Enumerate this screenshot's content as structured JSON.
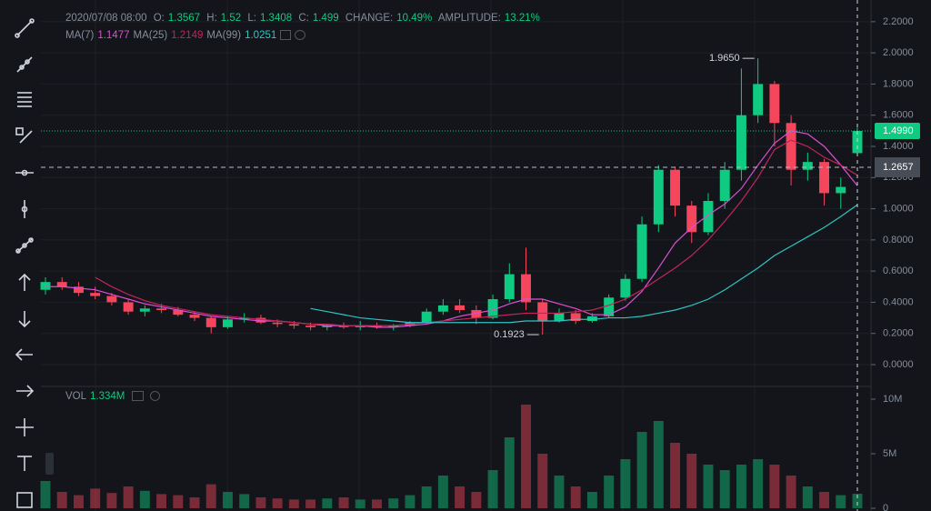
{
  "header": {
    "datetime": "2020/07/08 08:00",
    "o_label": "O:",
    "h_label": "H:",
    "l_label": "L:",
    "c_label": "C:",
    "change_label": "CHANGE:",
    "change": "10.49%",
    "amplitude_label": "AMPLITUDE:",
    "amplitude": "13.21%",
    "vol_label": "VOL",
    "vol_value": "1.334M"
  },
  "chart_data": {
    "type": "candlestick",
    "candles": [
      [
        0.48,
        0.56,
        0.45,
        0.53
      ],
      [
        0.53,
        0.56,
        0.48,
        0.5
      ],
      [
        0.5,
        0.53,
        0.44,
        0.46
      ],
      [
        0.46,
        0.5,
        0.42,
        0.44
      ],
      [
        0.44,
        0.46,
        0.38,
        0.4
      ],
      [
        0.4,
        0.42,
        0.32,
        0.34
      ],
      [
        0.34,
        0.38,
        0.31,
        0.36
      ],
      [
        0.36,
        0.39,
        0.33,
        0.35
      ],
      [
        0.35,
        0.37,
        0.31,
        0.32
      ],
      [
        0.32,
        0.34,
        0.28,
        0.3
      ],
      [
        0.3,
        0.31,
        0.2,
        0.24
      ],
      [
        0.24,
        0.31,
        0.23,
        0.29
      ],
      [
        0.29,
        0.33,
        0.27,
        0.3
      ],
      [
        0.3,
        0.32,
        0.26,
        0.27
      ],
      [
        0.27,
        0.29,
        0.24,
        0.26
      ],
      [
        0.26,
        0.28,
        0.23,
        0.25
      ],
      [
        0.25,
        0.27,
        0.22,
        0.24
      ],
      [
        0.24,
        0.26,
        0.22,
        0.25
      ],
      [
        0.25,
        0.27,
        0.23,
        0.24
      ],
      [
        0.24,
        0.28,
        0.22,
        0.25
      ],
      [
        0.25,
        0.27,
        0.23,
        0.24
      ],
      [
        0.24,
        0.26,
        0.22,
        0.25
      ],
      [
        0.25,
        0.28,
        0.24,
        0.27
      ],
      [
        0.27,
        0.36,
        0.26,
        0.34
      ],
      [
        0.34,
        0.42,
        0.32,
        0.38
      ],
      [
        0.38,
        0.42,
        0.33,
        0.35
      ],
      [
        0.35,
        0.38,
        0.26,
        0.3
      ],
      [
        0.3,
        0.45,
        0.29,
        0.42
      ],
      [
        0.42,
        0.65,
        0.4,
        0.58
      ],
      [
        0.58,
        0.75,
        0.35,
        0.4
      ],
      [
        0.4,
        0.42,
        0.1923,
        0.28
      ],
      [
        0.28,
        0.36,
        0.27,
        0.33
      ],
      [
        0.33,
        0.35,
        0.26,
        0.28
      ],
      [
        0.28,
        0.33,
        0.27,
        0.31
      ],
      [
        0.31,
        0.45,
        0.3,
        0.43
      ],
      [
        0.43,
        0.58,
        0.41,
        0.55
      ],
      [
        0.55,
        0.95,
        0.53,
        0.9
      ],
      [
        0.9,
        1.28,
        0.85,
        1.25
      ],
      [
        1.25,
        1.27,
        0.95,
        1.02
      ],
      [
        1.02,
        1.05,
        0.78,
        0.85
      ],
      [
        0.85,
        1.1,
        0.83,
        1.05
      ],
      [
        1.05,
        1.3,
        1.0,
        1.25
      ],
      [
        1.25,
        1.9,
        1.18,
        1.6
      ],
      [
        1.6,
        1.965,
        1.55,
        1.8
      ],
      [
        1.8,
        1.82,
        1.4,
        1.55
      ],
      [
        1.55,
        1.6,
        1.15,
        1.25
      ],
      [
        1.25,
        1.36,
        1.18,
        1.3
      ],
      [
        1.3,
        1.32,
        1.02,
        1.1
      ],
      [
        1.1,
        1.2,
        1.0,
        1.14
      ],
      [
        1.3567,
        1.52,
        1.3408,
        1.499
      ]
    ],
    "volumes": [
      2.5,
      1.5,
      1.2,
      1.8,
      1.4,
      2,
      1.6,
      1.3,
      1.2,
      1,
      2.2,
      1.5,
      1.3,
      1,
      0.9,
      0.8,
      0.8,
      0.9,
      1,
      0.8,
      0.8,
      0.9,
      1.2,
      2,
      3,
      2,
      1.5,
      3.5,
      6.5,
      9.5,
      5,
      3,
      2,
      1.5,
      3,
      4.5,
      7,
      8,
      6,
      5,
      4,
      3.5,
      4,
      4.5,
      4,
      3,
      2,
      1.5,
      1.2,
      1.334
    ],
    "series": [
      {
        "name": "MA(7)",
        "color": "#d94fd6",
        "values": [
          0.5,
          0.5,
          0.49,
          0.48,
          0.45,
          0.42,
          0.39,
          0.37,
          0.35,
          0.33,
          0.31,
          0.3,
          0.29,
          0.28,
          0.28,
          0.27,
          0.26,
          0.25,
          0.25,
          0.25,
          0.24,
          0.24,
          0.25,
          0.26,
          0.28,
          0.31,
          0.33,
          0.35,
          0.39,
          0.42,
          0.42,
          0.39,
          0.36,
          0.32,
          0.32,
          0.37,
          0.47,
          0.62,
          0.78,
          0.88,
          0.96,
          1.03,
          1.13,
          1.28,
          1.42,
          1.5,
          1.48,
          1.4,
          1.28,
          1.1477
        ]
      },
      {
        "name": "MA(25)",
        "color": "#c2255c",
        "values": [
          null,
          null,
          null,
          0.56,
          0.5,
          0.45,
          0.41,
          0.38,
          0.36,
          0.34,
          0.32,
          0.31,
          0.3,
          0.29,
          0.28,
          0.27,
          0.26,
          0.26,
          0.25,
          0.25,
          0.25,
          0.25,
          0.26,
          0.27,
          0.28,
          0.29,
          0.3,
          0.31,
          0.32,
          0.33,
          0.33,
          0.33,
          0.34,
          0.35,
          0.38,
          0.42,
          0.48,
          0.55,
          0.62,
          0.7,
          0.8,
          0.92,
          1.05,
          1.2,
          1.38,
          1.44,
          1.4,
          1.33,
          1.28,
          1.2149
        ]
      },
      {
        "name": "MA(99)",
        "color": "#2fc4c4",
        "values": [
          null,
          null,
          null,
          null,
          null,
          null,
          null,
          null,
          null,
          null,
          null,
          null,
          null,
          null,
          null,
          null,
          0.36,
          0.34,
          0.32,
          0.3,
          0.29,
          0.28,
          0.27,
          0.27,
          0.27,
          0.27,
          0.27,
          0.27,
          0.27,
          0.28,
          0.28,
          0.28,
          0.29,
          0.29,
          0.3,
          0.3,
          0.31,
          0.33,
          0.35,
          0.38,
          0.42,
          0.48,
          0.55,
          0.62,
          0.7,
          0.76,
          0.82,
          0.88,
          0.95,
          1.0251
        ]
      }
    ],
    "up_color": "#0ecb81",
    "down_color": "#f6465d",
    "ylim": [
      -0.14,
      2.31
    ],
    "yticks": [
      {
        "value": 0,
        "label": "0.0000"
      },
      {
        "value": 0.2,
        "label": "0.2000"
      },
      {
        "value": 0.4,
        "label": "0.4000"
      },
      {
        "value": 0.6,
        "label": "0.6000"
      },
      {
        "value": 0.8,
        "label": "0.8000"
      },
      {
        "value": 1,
        "label": "1.0000"
      },
      {
        "value": 1.2,
        "label": "1.2000"
      },
      {
        "value": 1.4,
        "label": "1.4000"
      },
      {
        "value": 1.6,
        "label": "1.6000"
      },
      {
        "value": 1.8,
        "label": "1.8000"
      },
      {
        "value": 2,
        "label": "2.0000"
      },
      {
        "value": 2.2,
        "label": "2.2000"
      }
    ],
    "y2lim": [
      0,
      11
    ],
    "y2ticks": [
      0,
      {
        "value": 5,
        "label": "5M"
      },
      {
        "value": 10,
        "label": "10M"
      }
    ],
    "high_marker": {
      "value": 1.965,
      "label": "1.9650"
    },
    "low_marker": {
      "value": 0.1923,
      "label": "0.1923"
    },
    "last_price": {
      "value": 1.499,
      "label": "1.4990"
    },
    "crosshair_price": {
      "value": 1.2657,
      "label": "1.2657"
    }
  }
}
